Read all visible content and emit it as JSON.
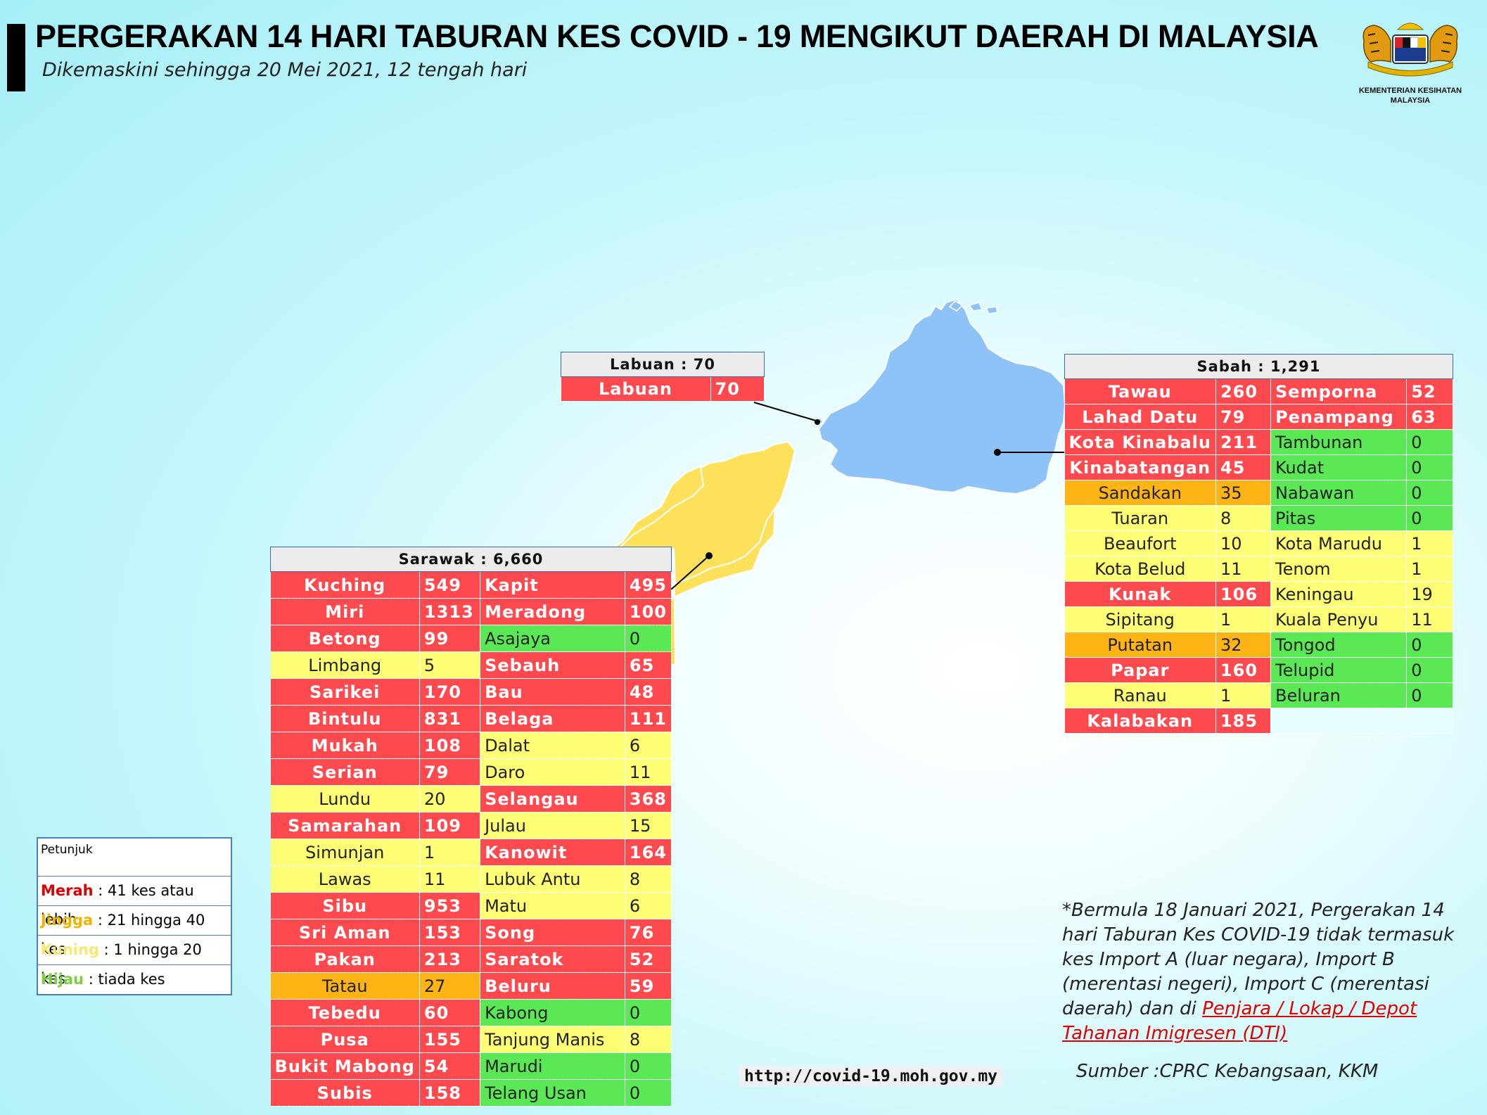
{
  "header": {
    "title": "PERGERAKAN 14 HARI TABURAN KES COVID - 19 MENGIKUT DAERAH DI MALAYSIA",
    "subtitle": "Dikemaskini sehingga 20 Mei 2021, 12 tengah hari"
  },
  "logo": {
    "line1": "KEMENTERIAN KESIHATAN",
    "line2": "MALAYSIA"
  },
  "colors": {
    "merah": "#fe4a4e",
    "jingga": "#fdb414",
    "kuning": "#feff74",
    "hijau": "#5ae854",
    "sarawak_map": "#fde15a",
    "sabah_map": "#8ec3f8",
    "labuan_map": "#8ec3f8"
  },
  "labuan": {
    "header": "Labuan : 70",
    "rows": [
      {
        "name": "Labuan",
        "value": "70",
        "level": "r"
      }
    ]
  },
  "sabah": {
    "header": "Sabah : 1,291",
    "rows": [
      {
        "a": {
          "name": "Tawau",
          "value": "260",
          "level": "r"
        },
        "b": {
          "name": "Semporna",
          "value": "52",
          "level": "r"
        }
      },
      {
        "a": {
          "name": "Lahad Datu",
          "value": "79",
          "level": "r"
        },
        "b": {
          "name": "Penampang",
          "value": "63",
          "level": "r"
        }
      },
      {
        "a": {
          "name": "Kota Kinabalu",
          "value": "211",
          "level": "r"
        },
        "b": {
          "name": "Tambunan",
          "value": "0",
          "level": "g"
        }
      },
      {
        "a": {
          "name": "Kinabatangan",
          "value": "45",
          "level": "r"
        },
        "b": {
          "name": "Kudat",
          "value": "0",
          "level": "g"
        }
      },
      {
        "a": {
          "name": "Sandakan",
          "value": "35",
          "level": "o"
        },
        "b": {
          "name": "Nabawan",
          "value": "0",
          "level": "g"
        }
      },
      {
        "a": {
          "name": "Tuaran",
          "value": "8",
          "level": "y"
        },
        "b": {
          "name": "Pitas",
          "value": "0",
          "level": "g"
        }
      },
      {
        "a": {
          "name": "Beaufort",
          "value": "10",
          "level": "y"
        },
        "b": {
          "name": "Kota Marudu",
          "value": "1",
          "level": "y"
        }
      },
      {
        "a": {
          "name": "Kota Belud",
          "value": "11",
          "level": "y"
        },
        "b": {
          "name": "Tenom",
          "value": "1",
          "level": "y"
        }
      },
      {
        "a": {
          "name": "Kunak",
          "value": "106",
          "level": "r"
        },
        "b": {
          "name": "Keningau",
          "value": "19",
          "level": "y"
        }
      },
      {
        "a": {
          "name": "Sipitang",
          "value": "1",
          "level": "y"
        },
        "b": {
          "name": "Kuala Penyu",
          "value": "11",
          "level": "y"
        }
      },
      {
        "a": {
          "name": "Putatan",
          "value": "32",
          "level": "o"
        },
        "b": {
          "name": "Tongod",
          "value": "0",
          "level": "g"
        }
      },
      {
        "a": {
          "name": "Papar",
          "value": "160",
          "level": "r"
        },
        "b": {
          "name": "Telupid",
          "value": "0",
          "level": "g"
        }
      },
      {
        "a": {
          "name": "Ranau",
          "value": "1",
          "level": "y"
        },
        "b": {
          "name": "Beluran",
          "value": "0",
          "level": "g"
        }
      },
      {
        "a": {
          "name": "Kalabakan",
          "value": "185",
          "level": "r"
        },
        "b": {
          "name": "",
          "value": "",
          "level": "e"
        }
      }
    ]
  },
  "sarawak": {
    "header": "Sarawak : 6,660",
    "rows": [
      {
        "a": {
          "name": "Kuching",
          "value": "549",
          "level": "r"
        },
        "b": {
          "name": "Kapit",
          "value": "495",
          "level": "r"
        }
      },
      {
        "a": {
          "name": "Miri",
          "value": "1313",
          "level": "r"
        },
        "b": {
          "name": "Meradong",
          "value": "100",
          "level": "r"
        }
      },
      {
        "a": {
          "name": "Betong",
          "value": "99",
          "level": "r"
        },
        "b": {
          "name": "Asajaya",
          "value": "0",
          "level": "g"
        }
      },
      {
        "a": {
          "name": "Limbang",
          "value": "5",
          "level": "y"
        },
        "b": {
          "name": "Sebauh",
          "value": "65",
          "level": "r"
        }
      },
      {
        "a": {
          "name": "Sarikei",
          "value": "170",
          "level": "r"
        },
        "b": {
          "name": "Bau",
          "value": "48",
          "level": "r"
        }
      },
      {
        "a": {
          "name": "Bintulu",
          "value": "831",
          "level": "r"
        },
        "b": {
          "name": "Belaga",
          "value": "111",
          "level": "r"
        }
      },
      {
        "a": {
          "name": "Mukah",
          "value": "108",
          "level": "r"
        },
        "b": {
          "name": "Dalat",
          "value": "6",
          "level": "y"
        }
      },
      {
        "a": {
          "name": "Serian",
          "value": "79",
          "level": "r"
        },
        "b": {
          "name": "Daro",
          "value": "11",
          "level": "y"
        }
      },
      {
        "a": {
          "name": "Lundu",
          "value": "20",
          "level": "y"
        },
        "b": {
          "name": "Selangau",
          "value": "368",
          "level": "r"
        }
      },
      {
        "a": {
          "name": "Samarahan",
          "value": "109",
          "level": "r"
        },
        "b": {
          "name": "Julau",
          "value": "15",
          "level": "y"
        }
      },
      {
        "a": {
          "name": "Simunjan",
          "value": "1",
          "level": "y"
        },
        "b": {
          "name": "Kanowit",
          "value": "164",
          "level": "r"
        }
      },
      {
        "a": {
          "name": "Lawas",
          "value": "11",
          "level": "y"
        },
        "b": {
          "name": "Lubuk Antu",
          "value": "8",
          "level": "y"
        }
      },
      {
        "a": {
          "name": "Sibu",
          "value": "953",
          "level": "r"
        },
        "b": {
          "name": "Matu",
          "value": "6",
          "level": "y"
        }
      },
      {
        "a": {
          "name": "Sri Aman",
          "value": "153",
          "level": "r"
        },
        "b": {
          "name": "Song",
          "value": "76",
          "level": "r"
        }
      },
      {
        "a": {
          "name": "Pakan",
          "value": "213",
          "level": "r"
        },
        "b": {
          "name": "Saratok",
          "value": "52",
          "level": "r"
        }
      },
      {
        "a": {
          "name": "Tatau",
          "value": "27",
          "level": "o"
        },
        "b": {
          "name": "Beluru",
          "value": "59",
          "level": "r"
        }
      },
      {
        "a": {
          "name": "Tebedu",
          "value": "60",
          "level": "r"
        },
        "b": {
          "name": "Kabong",
          "value": "0",
          "level": "g"
        }
      },
      {
        "a": {
          "name": "Pusa",
          "value": "155",
          "level": "r"
        },
        "b": {
          "name": "Tanjung Manis",
          "value": "8",
          "level": "y"
        }
      },
      {
        "a": {
          "name": "Bukit Mabong",
          "value": "54",
          "level": "r"
        },
        "b": {
          "name": "Marudi",
          "value": "0",
          "level": "g"
        }
      },
      {
        "a": {
          "name": "Subis",
          "value": "158",
          "level": "r"
        },
        "b": {
          "name": "Telang Usan",
          "value": "0",
          "level": "g"
        }
      }
    ]
  },
  "legend": {
    "title": "Petunjuk",
    "items": [
      {
        "key": "Merah",
        "desc": " : 41 kes atau lebih",
        "color": "#e00000"
      },
      {
        "key": "Jingga",
        "desc": " : 21 hingga 40 kes",
        "color": "#f0b400"
      },
      {
        "key": "Kuning",
        "desc": " : 1 hingga 20 kes",
        "color": "#f8e870"
      },
      {
        "key": "Hijau",
        "desc": " : tiada kes",
        "color": "#7ad040"
      }
    ]
  },
  "note": {
    "text": "*Bermula 18 Januari 2021, Pergerakan 14 hari Taburan Kes COVID-19 tidak termasuk kes Import A (luar negara), Import B (merentasi negeri), Import C (merentasi daerah) dan di ",
    "link": "Penjara / Lokap / Depot Tahanan Imigresen (DTI)"
  },
  "url": "http://covid-19.moh.gov.my",
  "source": "Sumber :CPRC Kebangsaan,  KKM"
}
